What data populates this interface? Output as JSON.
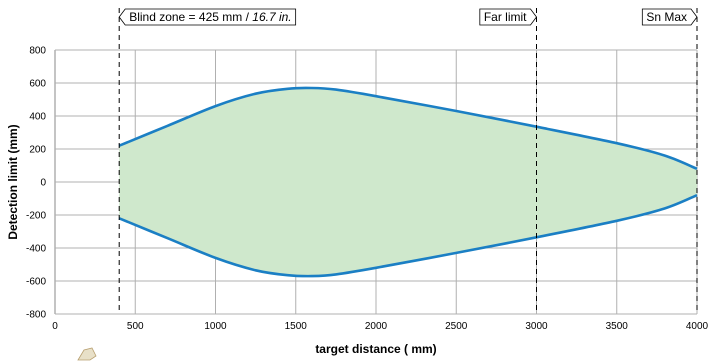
{
  "chart_data": {
    "type": "area",
    "xlabel": "target distance ( mm)",
    "ylabel": "Detection limit (mm)",
    "xlim": [
      0,
      4000
    ],
    "ylim": [
      -800,
      800
    ],
    "x_ticks": [
      0,
      500,
      1000,
      1500,
      2000,
      2500,
      3000,
      3500,
      4000
    ],
    "y_ticks": [
      800,
      600,
      400,
      200,
      0,
      -200,
      -400,
      -600,
      -800
    ],
    "grid": true,
    "upper": {
      "x": [
        400,
        700,
        1000,
        1250,
        1450,
        1600,
        1750,
        2000,
        2500,
        3000,
        3500,
        3800,
        4000
      ],
      "y": [
        220,
        340,
        460,
        535,
        565,
        570,
        560,
        520,
        430,
        335,
        235,
        160,
        80
      ]
    },
    "lower": {
      "x": [
        400,
        700,
        1000,
        1250,
        1450,
        1600,
        1750,
        2000,
        2500,
        3000,
        3500,
        3800,
        4000
      ],
      "y": [
        -220,
        -340,
        -460,
        -535,
        -565,
        -570,
        -560,
        -520,
        -430,
        -335,
        -235,
        -160,
        -80
      ]
    },
    "markers": [
      {
        "x": 400,
        "label_main": "Blind zone = 425 mm / ",
        "label_italic": "16.7 in.",
        "pointer": "left"
      },
      {
        "x": 3000,
        "label_main": "Far limit",
        "label_italic": "",
        "pointer": "right"
      },
      {
        "x": 4000,
        "label_main": "Sn Max",
        "label_italic": "",
        "pointer": "right"
      }
    ],
    "colors": {
      "fill": "#cfe8cc",
      "line": "#1b7fc4",
      "grid": "#b0b0b0",
      "axis": "#888888"
    }
  }
}
